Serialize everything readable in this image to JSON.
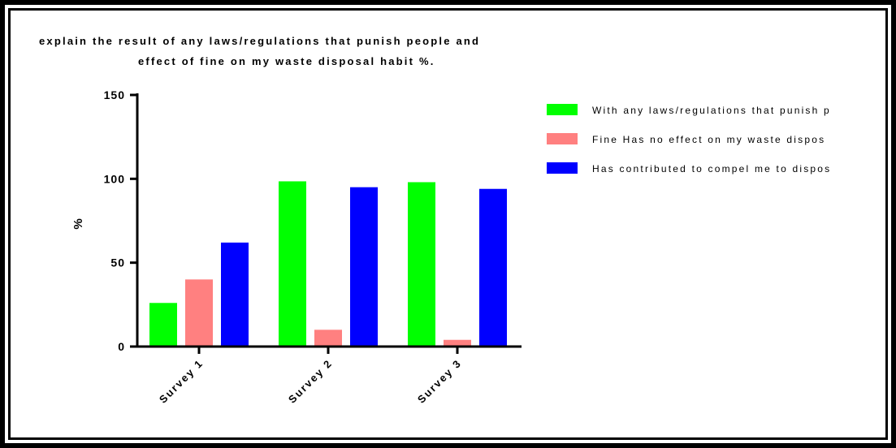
{
  "chart_data": {
    "type": "bar",
    "title": "explain the result of any laws/regulations that punish people and effect of fine on my waste disposal habit %.",
    "title_lines": [
      "explain the result of any laws/regulations that punish people and",
      "effect of fine on my waste disposal habit %."
    ],
    "xlabel": "",
    "ylabel": "%",
    "ylim": [
      0,
      150
    ],
    "yticks": [
      "0",
      "50",
      "100",
      "150"
    ],
    "categories": [
      "Survey 1",
      "Survey 2",
      "Survey 3"
    ],
    "series": [
      {
        "name": "With any laws/regulations that punish p",
        "color": "#00ff00",
        "values": [
          26,
          98.5,
          98
        ]
      },
      {
        "name": "Fine Has no effect on my waste dispos",
        "color": "#ff8080",
        "values": [
          40,
          10,
          4
        ]
      },
      {
        "name": "Has contributed to compel me to dispos",
        "color": "#0000ff",
        "values": [
          62,
          95,
          94
        ]
      }
    ],
    "grid": false,
    "legend_position": "right"
  }
}
